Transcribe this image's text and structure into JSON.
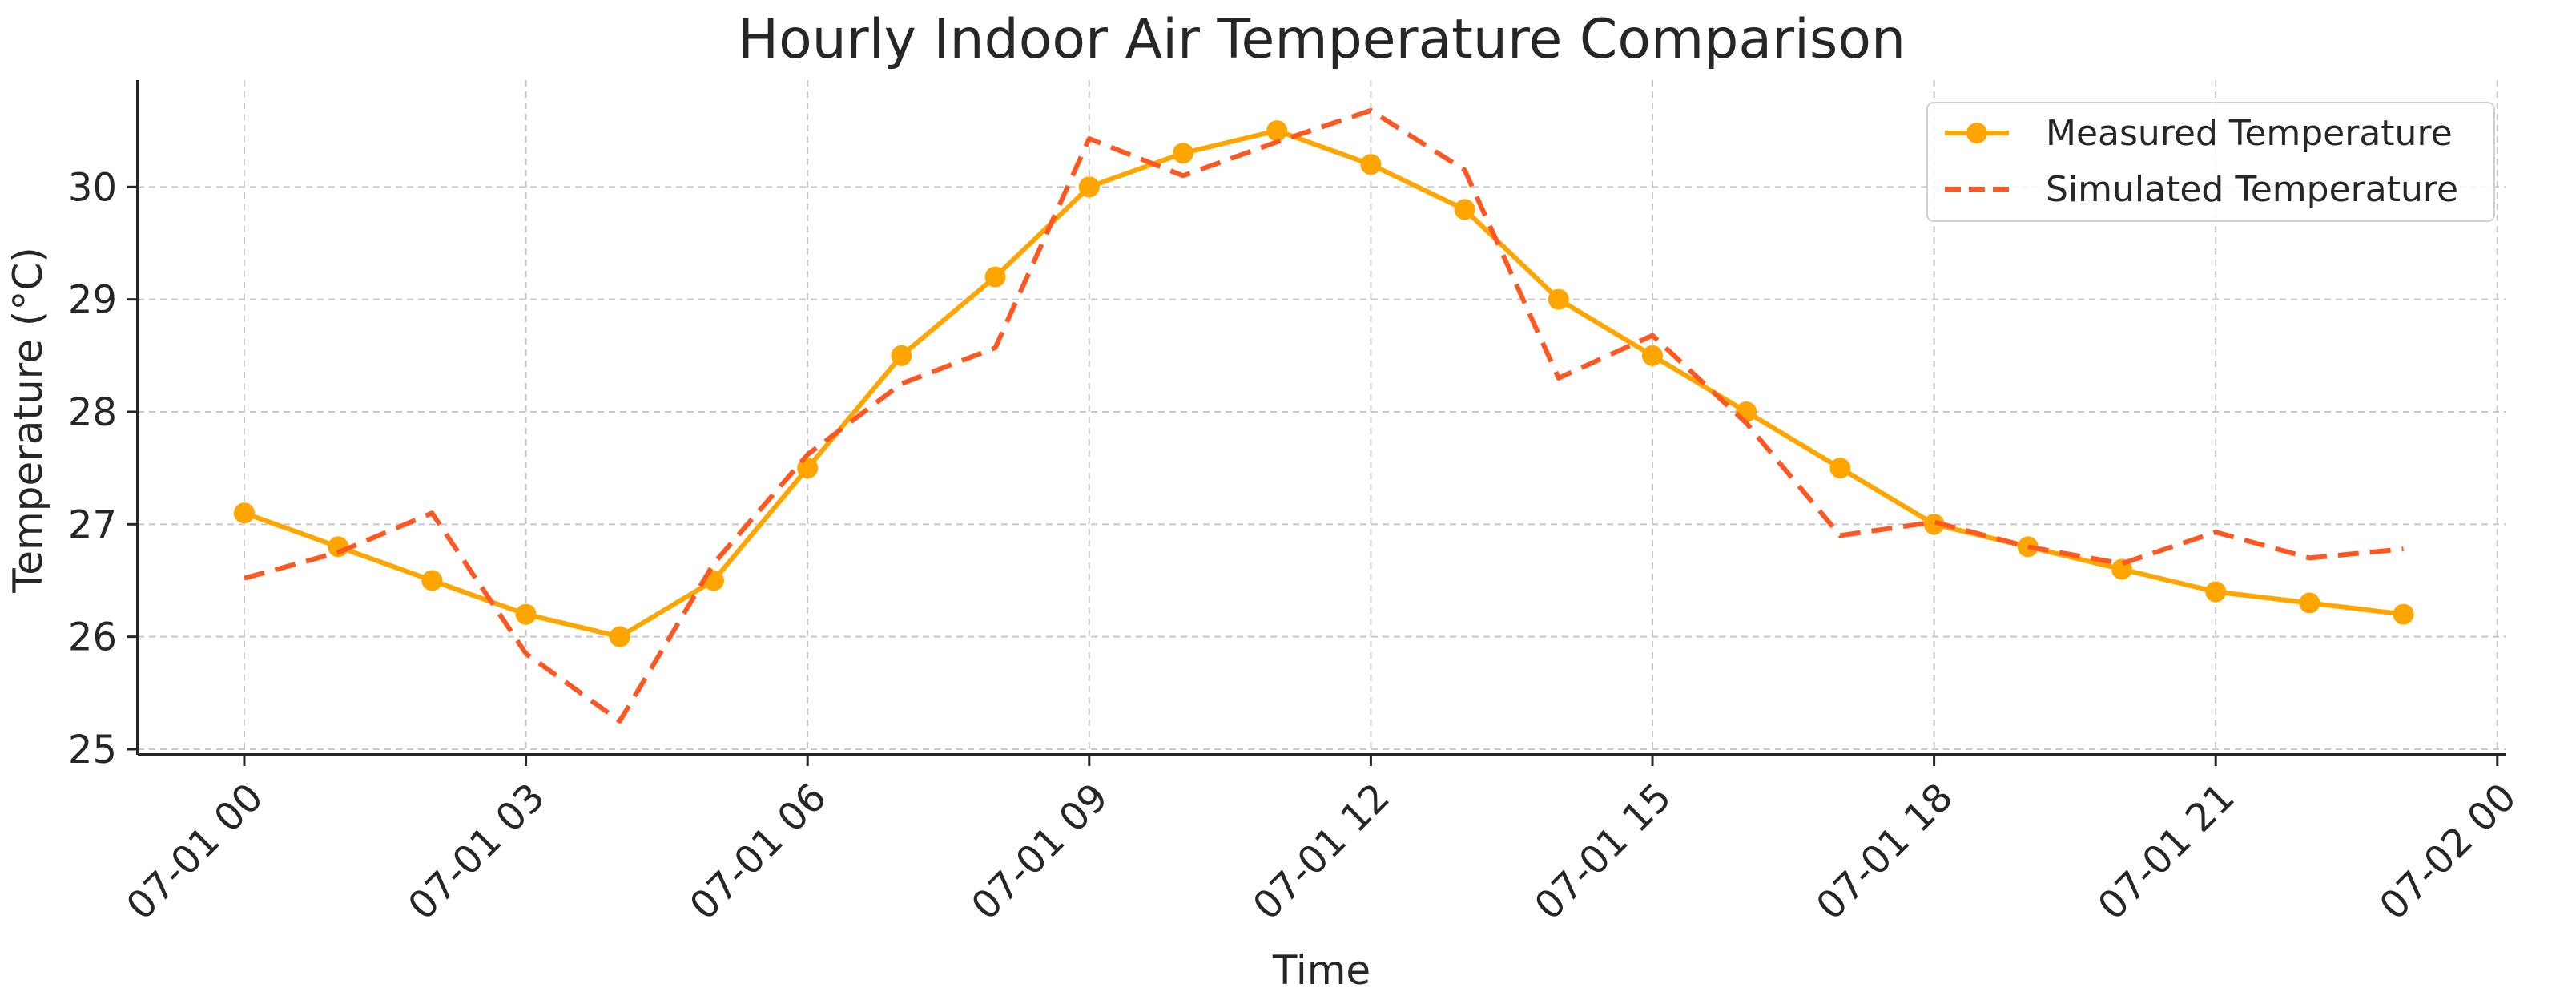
{
  "chart_data": {
    "type": "line",
    "title": "Hourly Indoor Air Temperature Comparison",
    "xlabel": "Time",
    "ylabel": "Temperature (°C)",
    "x": [
      "07-01 00",
      "07-01 01",
      "07-01 02",
      "07-01 03",
      "07-01 04",
      "07-01 05",
      "07-01 06",
      "07-01 07",
      "07-01 08",
      "07-01 09",
      "07-01 10",
      "07-01 11",
      "07-01 12",
      "07-01 13",
      "07-01 14",
      "07-01 15",
      "07-01 16",
      "07-01 17",
      "07-01 18",
      "07-01 19",
      "07-01 20",
      "07-01 21",
      "07-01 22",
      "07-01 23"
    ],
    "x_ticks": [
      "07-01 00",
      "07-01 03",
      "07-01 06",
      "07-01 09",
      "07-01 12",
      "07-01 15",
      "07-01 18",
      "07-01 21",
      "07-02 00"
    ],
    "y_ticks": [
      25,
      26,
      27,
      28,
      29,
      30
    ],
    "ylim": [
      24.95,
      30.95
    ],
    "grid": true,
    "legend_position": "top-right",
    "series": [
      {
        "name": "Measured Temperature",
        "style": "solid-markers",
        "color": "#FFA500",
        "values": [
          27.1,
          26.8,
          26.5,
          26.2,
          26.0,
          26.5,
          27.5,
          28.5,
          29.2,
          30.0,
          30.3,
          30.5,
          30.2,
          29.8,
          29.0,
          28.5,
          28.0,
          27.5,
          27.0,
          26.8,
          26.6,
          26.4,
          26.3,
          26.2
        ]
      },
      {
        "name": "Simulated Temperature",
        "style": "dashed",
        "color": "#FF5722",
        "values": [
          26.52,
          26.75,
          27.1,
          25.85,
          25.25,
          26.65,
          27.62,
          28.25,
          28.57,
          30.43,
          30.1,
          30.4,
          30.68,
          30.15,
          28.3,
          28.68,
          27.9,
          26.9,
          27.02,
          26.8,
          26.65,
          26.93,
          26.7,
          26.78
        ]
      }
    ]
  }
}
